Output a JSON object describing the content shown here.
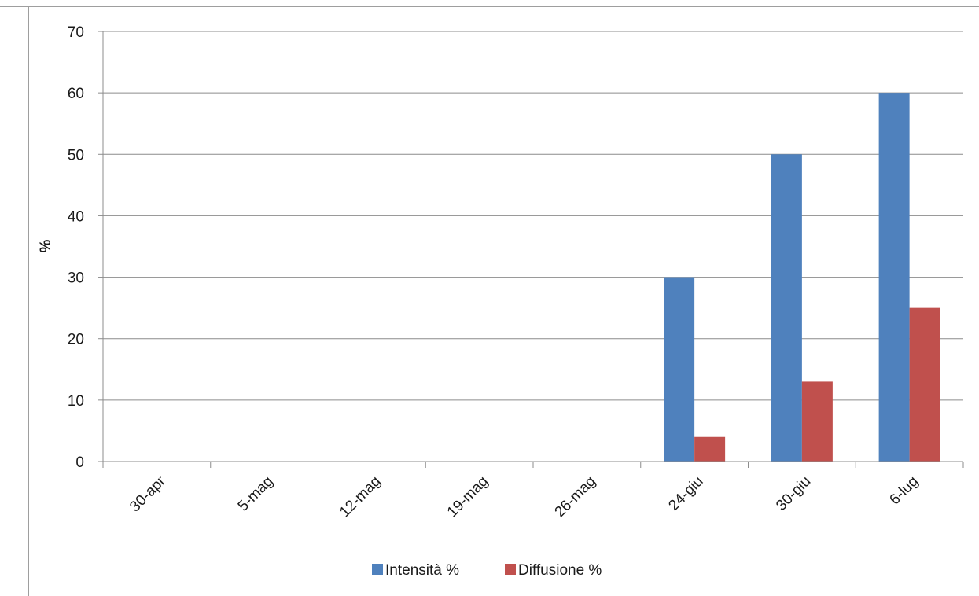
{
  "chart_data": {
    "type": "bar",
    "title": "",
    "xlabel": "",
    "ylabel": "%",
    "ylim": [
      0,
      70
    ],
    "yticks": [
      0,
      10,
      20,
      30,
      40,
      50,
      60,
      70
    ],
    "grid": true,
    "legend_position": "bottom",
    "categories": [
      "30-apr",
      "5-mag",
      "12-mag",
      "19-mag",
      "26-mag",
      "24-giu",
      "30-giu",
      "6-lug"
    ],
    "series": [
      {
        "name": "Intensità %",
        "color": "#4F81BD",
        "values": [
          0,
          0,
          0,
          0,
          0,
          30,
          50,
          60
        ]
      },
      {
        "name": "Diffusione %",
        "color": "#C0504D",
        "values": [
          0,
          0,
          0,
          0,
          0,
          4,
          13,
          25
        ]
      }
    ]
  }
}
